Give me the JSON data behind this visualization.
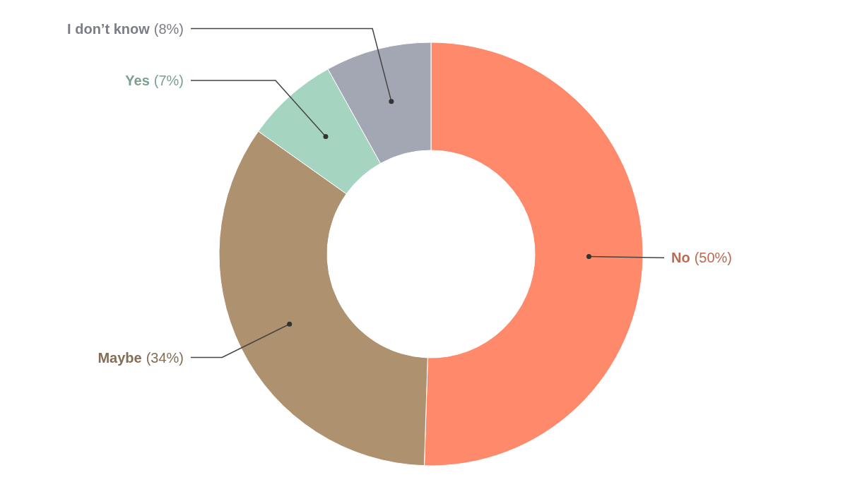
{
  "chart_data": {
    "type": "donut",
    "categories": [
      "No",
      "Maybe",
      "Yes",
      "I don’t know"
    ],
    "values": [
      50,
      34,
      7,
      8
    ],
    "colors": [
      "#ff8a6b",
      "#ae9270",
      "#a5d5c0",
      "#a3a6b3"
    ],
    "value_labels": [
      "(50%)",
      "(34%)",
      "(7%)",
      "(8%)"
    ]
  }
}
